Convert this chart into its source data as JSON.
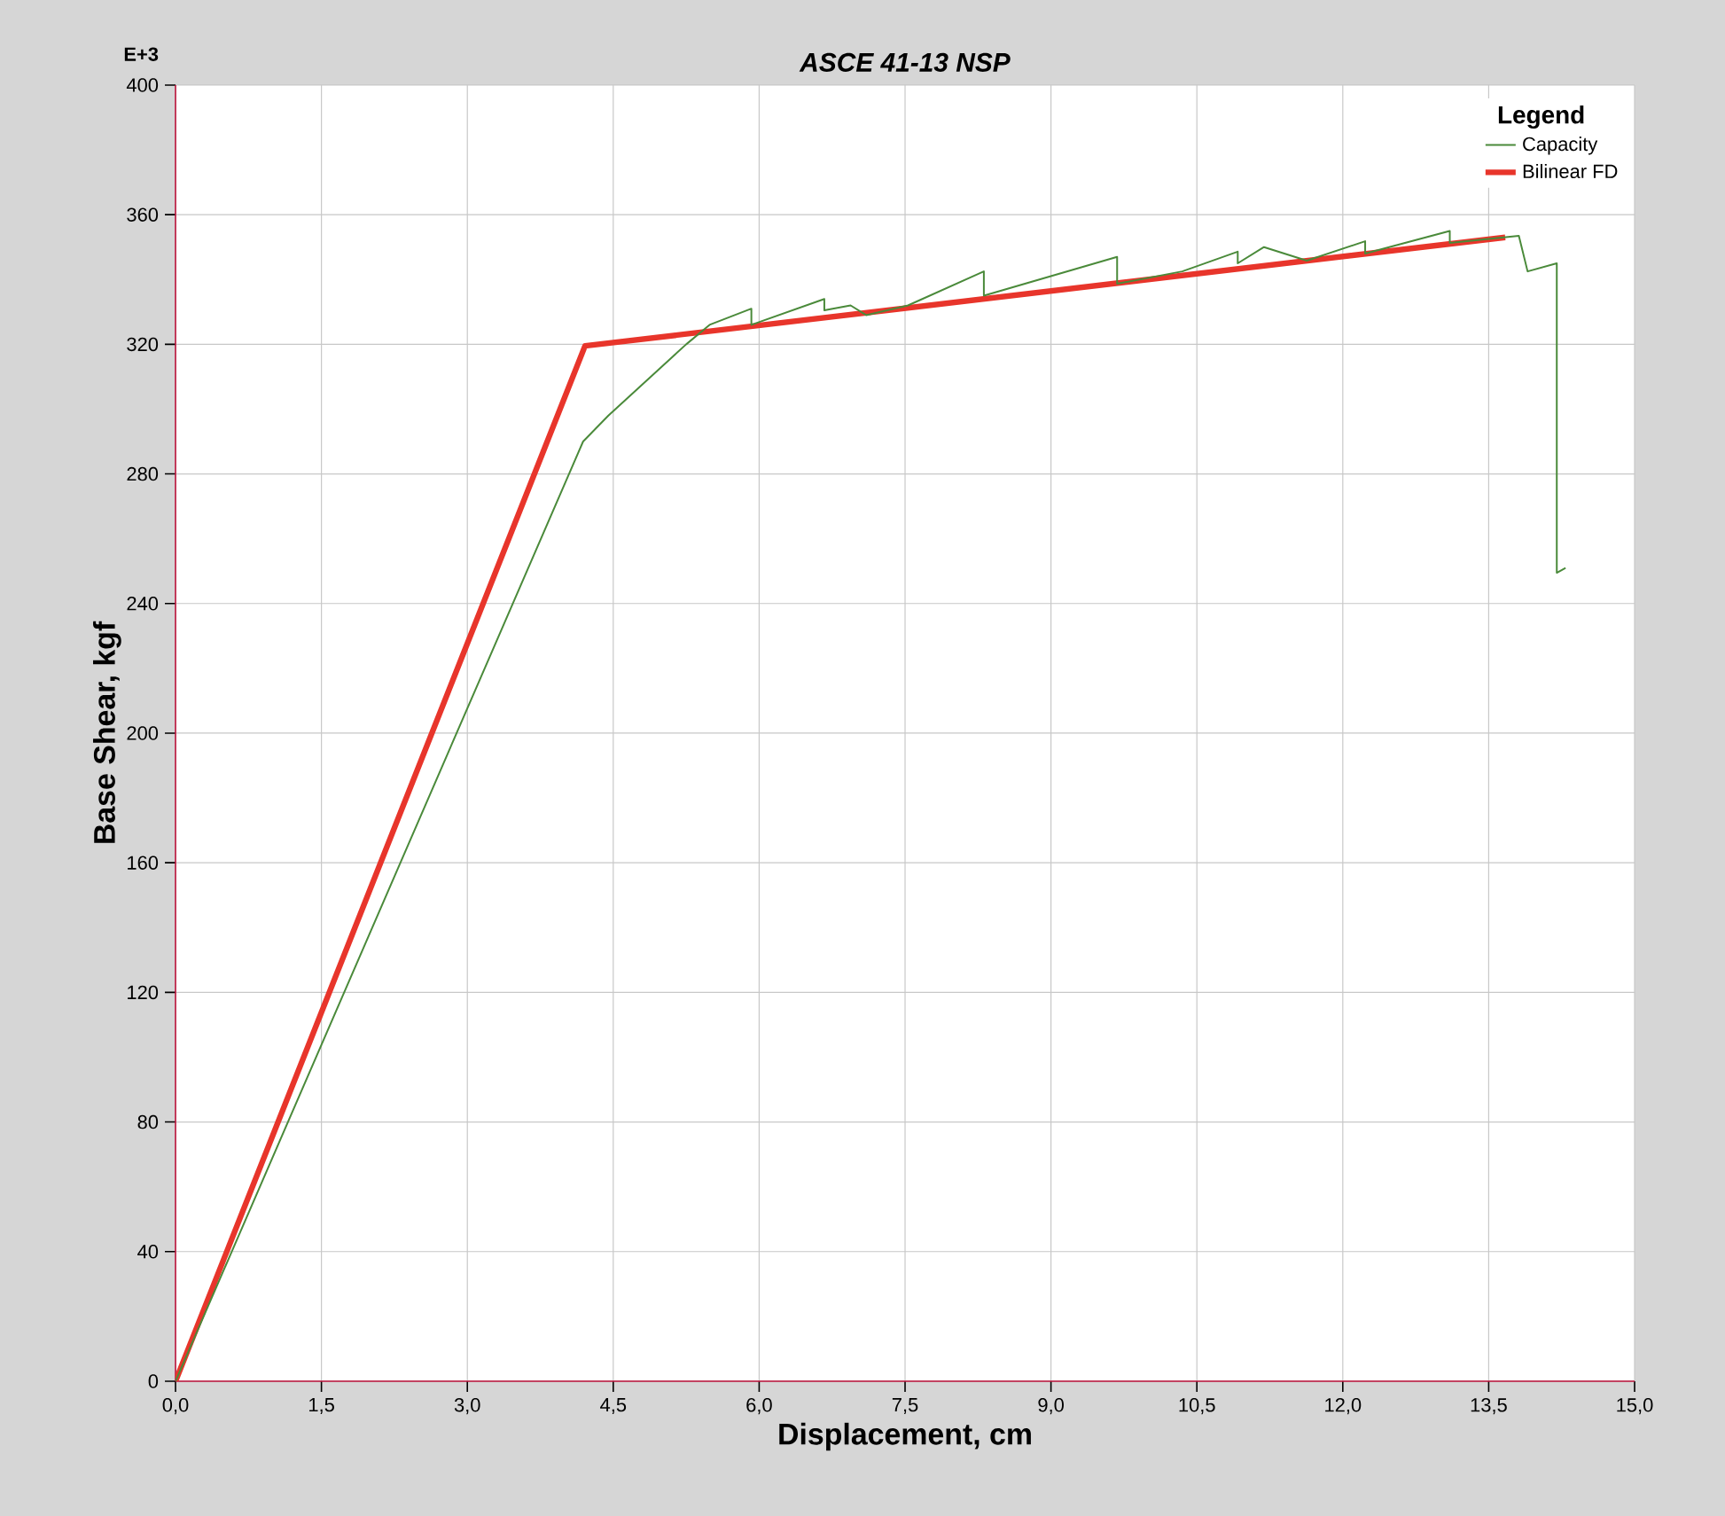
{
  "chart_data": {
    "type": "line",
    "title": "ASCE 41-13 NSP",
    "xlabel": "Displacement, cm",
    "ylabel": "Base Shear, kgf",
    "legend_title": "Legend",
    "annotations": [
      "E+3"
    ],
    "series": [
      {
        "name": "Capacity",
        "color": "#4a8a3a",
        "x": [
          0,
          4.19,
          4.45,
          5.25,
          5.49,
          5.92,
          5.92,
          6.67,
          6.67,
          6.94,
          7.1,
          7.53,
          8.31,
          8.31,
          9.68,
          9.68,
          10.35,
          10.92,
          10.92,
          11.19,
          11.63,
          12.23,
          12.23,
          13.1,
          13.1,
          13.81,
          13.9,
          14.2,
          14.2,
          14.29
        ],
        "values": [
          0,
          290,
          298,
          320,
          326,
          331,
          326,
          334,
          330.5,
          332,
          329,
          332,
          342.5,
          335,
          347,
          338.7,
          342.5,
          348.6,
          345,
          350,
          345.8,
          351.8,
          348,
          355,
          351.3,
          353.5,
          342.5,
          345,
          249.5,
          251
        ]
      },
      {
        "name": "Bilinear FD",
        "color": "#e8352b",
        "x": [
          0,
          4.21,
          13.67
        ],
        "values": [
          0,
          319.5,
          353
        ]
      }
    ],
    "xlim": [
      0,
      15
    ],
    "ylim": [
      0,
      400
    ],
    "xticks": [
      {
        "value": 0,
        "label": "0,0"
      },
      {
        "value": 1.5,
        "label": "1,5"
      },
      {
        "value": 3,
        "label": "3,0"
      },
      {
        "value": 4.5,
        "label": "4,5"
      },
      {
        "value": 6,
        "label": "6,0"
      },
      {
        "value": 7.5,
        "label": "7,5"
      },
      {
        "value": 9,
        "label": "9,0"
      },
      {
        "value": 10.5,
        "label": "10,5"
      },
      {
        "value": 12,
        "label": "12,0"
      },
      {
        "value": 13.5,
        "label": "13,5"
      },
      {
        "value": 15,
        "label": "15,0"
      }
    ],
    "yticks": [
      0,
      40,
      80,
      120,
      160,
      200,
      240,
      280,
      320,
      360,
      400
    ],
    "grid": true,
    "legend": "top right"
  }
}
